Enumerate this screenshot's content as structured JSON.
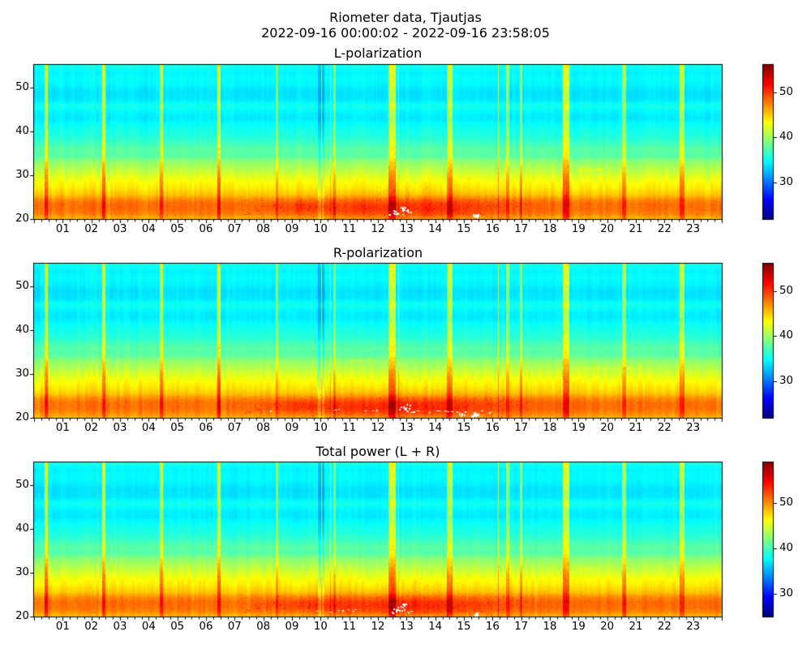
{
  "figure": {
    "title_line1": "Riometer data, Tjautjas",
    "title_line2": "2022-09-16 00:00:02 - 2022-09-16 23:58:05",
    "background": "#ffffff",
    "text_color": "#000000"
  },
  "chart_data": [
    {
      "type": "heatmap",
      "title": "L-polarization",
      "x": {
        "range": [
          0,
          24
        ],
        "tick_labels": [
          "01",
          "02",
          "03",
          "04",
          "05",
          "06",
          "07",
          "08",
          "09",
          "10",
          "11",
          "12",
          "13",
          "14",
          "15",
          "16",
          "17",
          "18",
          "19",
          "20",
          "21",
          "22",
          "23"
        ],
        "minor_tick_minutes": 15
      },
      "y": {
        "range": [
          20,
          55.2
        ],
        "ticks": [
          20,
          30,
          40,
          50
        ]
      },
      "colorbar": {
        "vmin": 22,
        "vmax": 56,
        "ticks": [
          30,
          40,
          50
        ]
      },
      "colormap": "jet",
      "value_offset_db": 0,
      "seed": 7,
      "absorption_amp_db": 2.3,
      "white_saturated_clusters": [
        [
          12.82,
          22.4,
          2
        ],
        [
          13.02,
          22.1,
          2
        ],
        [
          15.33,
          20.8,
          3
        ],
        [
          12.58,
          21.6,
          2
        ]
      ],
      "white_dash_lines": [
        {
          "t0": 12.3,
          "t1": 13.3,
          "f": 21.2,
          "density": 0.18
        }
      ],
      "orange_dash_lines": [
        {
          "t0": 18.9,
          "t1": 19.8,
          "f": 31.3,
          "amp": 2.0
        }
      ]
    },
    {
      "type": "heatmap",
      "title": "R-polarization",
      "x": {
        "range": [
          0,
          24
        ],
        "tick_labels": [
          "01",
          "02",
          "03",
          "04",
          "05",
          "06",
          "07",
          "08",
          "09",
          "10",
          "11",
          "12",
          "13",
          "14",
          "15",
          "16",
          "17",
          "18",
          "19",
          "20",
          "21",
          "22",
          "23"
        ],
        "minor_tick_minutes": 15
      },
      "y": {
        "range": [
          20,
          55.2
        ],
        "ticks": [
          20,
          30,
          40,
          50
        ]
      },
      "colorbar": {
        "vmin": 22,
        "vmax": 56,
        "ticks": [
          30,
          40,
          50
        ]
      },
      "colormap": "jet",
      "value_offset_db": 0,
      "seed": 13,
      "absorption_amp_db": 2.7,
      "white_saturated_clusters": [
        [
          12.85,
          22.3,
          2
        ],
        [
          13.05,
          22.6,
          2
        ],
        [
          15.35,
          20.9,
          3
        ],
        [
          14.9,
          21.1,
          2
        ]
      ],
      "white_dash_lines": [
        {
          "t0": 8.1,
          "t1": 12.0,
          "f": 21.9,
          "density": 0.14
        },
        {
          "t0": 13.0,
          "t1": 16.6,
          "f": 21.5,
          "density": 0.22
        }
      ],
      "orange_dash_lines": [
        {
          "t0": 19.1,
          "t1": 21.2,
          "f": 31.2,
          "amp": 2.0
        },
        {
          "t0": 11.0,
          "t1": 12.0,
          "f": 33.0,
          "amp": 1.5
        }
      ]
    },
    {
      "type": "heatmap",
      "title": "Total power (L + R)",
      "x": {
        "range": [
          0,
          24
        ],
        "tick_labels": [
          "01",
          "02",
          "03",
          "04",
          "05",
          "06",
          "07",
          "08",
          "09",
          "10",
          "11",
          "12",
          "13",
          "14",
          "15",
          "16",
          "17",
          "18",
          "19",
          "20",
          "21",
          "22",
          "23"
        ],
        "minor_tick_minutes": 15
      },
      "y": {
        "range": [
          20,
          55.2
        ],
        "ticks": [
          20,
          30,
          40,
          50
        ]
      },
      "colorbar": {
        "vmin": 25,
        "vmax": 59,
        "ticks": [
          30,
          40,
          50
        ]
      },
      "colormap": "jet",
      "value_offset_db": 3,
      "seed": 29,
      "absorption_amp_db": 2.5,
      "white_saturated_clusters": [
        [
          12.8,
          22.0,
          2
        ],
        [
          12.95,
          22.5,
          2
        ],
        [
          15.4,
          20.7,
          3
        ],
        [
          12.6,
          21.4,
          2
        ]
      ],
      "white_dash_lines": [
        {
          "t0": 9.7,
          "t1": 11.2,
          "f": 21.4,
          "density": 0.2
        },
        {
          "t0": 12.0,
          "t1": 13.2,
          "f": 21.2,
          "density": 0.15
        }
      ],
      "orange_dash_lines": [
        {
          "t0": 18.9,
          "t1": 19.6,
          "f": 31.0,
          "amp": 1.6
        }
      ]
    }
  ],
  "render_common": {
    "freq_profile_db": [
      [
        20.0,
        45.4
      ],
      [
        21.0,
        47.2
      ],
      [
        22.0,
        48.0
      ],
      [
        23.5,
        48.1
      ],
      [
        24.5,
        47.0
      ],
      [
        25.5,
        45.2
      ],
      [
        27.0,
        44.0
      ],
      [
        29.0,
        42.8
      ],
      [
        31.0,
        41.1
      ],
      [
        33.0,
        39.6
      ],
      [
        34.5,
        37.6
      ],
      [
        36.0,
        37.8
      ],
      [
        37.5,
        36.6
      ],
      [
        39.0,
        35.8
      ],
      [
        41.0,
        35.2
      ],
      [
        42.8,
        34.1
      ],
      [
        44.2,
        34.3
      ],
      [
        45.8,
        35.4
      ],
      [
        47.2,
        34.0
      ],
      [
        49.0,
        33.8
      ],
      [
        50.5,
        34.4
      ],
      [
        52.0,
        34.8
      ],
      [
        53.5,
        34.4
      ],
      [
        55.2,
        35.6
      ]
    ],
    "calibration_stripes": [
      {
        "t": 0.43,
        "w": 0.1,
        "a": 8
      },
      {
        "t": 2.44,
        "w": 0.1,
        "a": 8
      },
      {
        "t": 4.45,
        "w": 0.1,
        "a": 7
      },
      {
        "t": 6.46,
        "w": 0.1,
        "a": 8
      },
      {
        "t": 8.47,
        "w": 0.08,
        "a": 5
      },
      {
        "t": 10.48,
        "w": 0.07,
        "a": 5
      },
      {
        "t": 12.49,
        "w": 0.26,
        "a": 8
      },
      {
        "t": 14.51,
        "w": 0.2,
        "a": 7
      },
      {
        "t": 16.53,
        "w": 0.12,
        "a": 6
      },
      {
        "t": 18.56,
        "w": 0.22,
        "a": 8
      },
      {
        "t": 20.59,
        "w": 0.15,
        "a": 6
      },
      {
        "t": 22.62,
        "w": 0.17,
        "a": 7
      },
      {
        "t": 17.0,
        "w": 0.09,
        "a": 6
      },
      {
        "t": 16.2,
        "w": 0.035,
        "a": 7
      },
      {
        "t": 10.35,
        "w": 0.03,
        "a": 5
      },
      {
        "t": 10.02,
        "w": 0.03,
        "a": 6
      },
      {
        "t": 12.72,
        "w": 0.04,
        "a": 5
      }
    ],
    "dropout": {
      "t0": 9.9,
      "t1": 10.12,
      "amp": -2.2
    },
    "absorption_event": {
      "t": 13.1,
      "t_sigma": 3.3,
      "f": 22.3,
      "f_sigma": 2.6
    },
    "secondary_blob": {
      "t": 9.4,
      "f": 22.6,
      "t_sigma": 1.0,
      "f_sigma": 1.5,
      "amp_ratio": 0.5
    }
  }
}
